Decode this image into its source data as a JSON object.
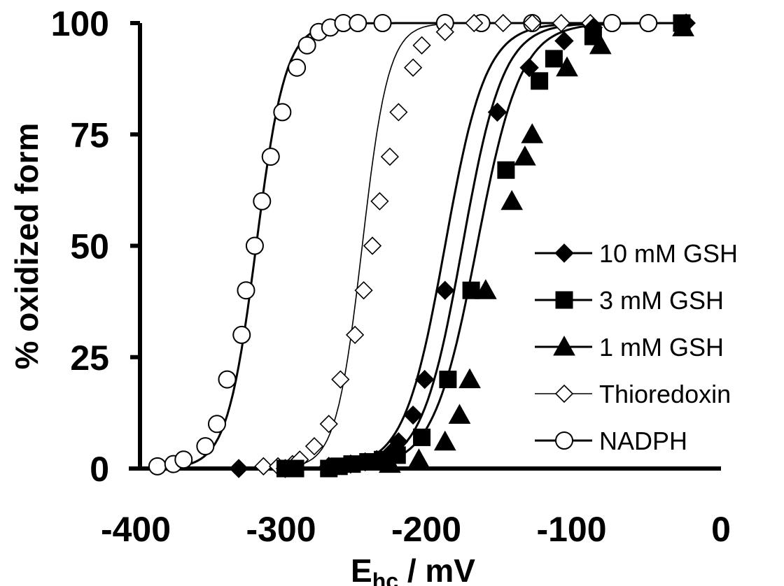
{
  "chart_data": {
    "type": "scatter",
    "xlabel": "E",
    "xlabel_sub": "hc",
    "xlabel_unit": " / mV",
    "ylabel": "% oxidized form",
    "xlim": [
      -400,
      0
    ],
    "ylim": [
      0,
      100
    ],
    "x_ticks": [
      "-400",
      "-300",
      "-200",
      "-100",
      "0"
    ],
    "x_tick_values": [
      -400,
      -300,
      -200,
      -100,
      0
    ],
    "y_ticks": [
      "0",
      "25",
      "50",
      "75",
      "100"
    ],
    "y_tick_values": [
      0,
      25,
      50,
      75,
      100
    ],
    "grid": false,
    "legend_position": "right",
    "series": [
      {
        "name": "10 mM GSH",
        "marker": "diamond-filled",
        "midpoint": -190,
        "slope": 14,
        "color": "#000000",
        "points": [
          [
            -332,
            0
          ],
          [
            -300,
            0
          ],
          [
            -270,
            0.5
          ],
          [
            -255,
            1
          ],
          [
            -245,
            1.5
          ],
          [
            -237,
            2
          ],
          [
            -226,
            4
          ],
          [
            -222,
            6
          ],
          [
            -212,
            12
          ],
          [
            -204,
            20
          ],
          [
            -190,
            40
          ],
          [
            -154,
            80
          ],
          [
            -132,
            90
          ],
          [
            -108,
            96
          ],
          [
            -88,
            99
          ],
          [
            -24,
            100
          ]
        ]
      },
      {
        "name": "3 mM GSH",
        "marker": "square-filled",
        "midpoint": -178,
        "slope": 14,
        "color": "#000000",
        "points": [
          [
            -300,
            0
          ],
          [
            -293,
            0
          ],
          [
            -270,
            0
          ],
          [
            -263,
            0.5
          ],
          [
            -254,
            1
          ],
          [
            -243,
            1.5
          ],
          [
            -233,
            2
          ],
          [
            -223,
            3
          ],
          [
            -206,
            7
          ],
          [
            -188,
            20
          ],
          [
            -172,
            40
          ],
          [
            -148,
            67
          ],
          [
            -125,
            87
          ],
          [
            -115,
            92
          ],
          [
            -88,
            97
          ],
          [
            -27,
            100
          ]
        ]
      },
      {
        "name": "1 mM GSH",
        "marker": "triangle-filled",
        "midpoint": -168,
        "slope": 15,
        "color": "#000000",
        "points": [
          [
            -228,
            1
          ],
          [
            -208,
            2
          ],
          [
            -190,
            6
          ],
          [
            -180,
            12
          ],
          [
            -173,
            20
          ],
          [
            -162,
            40
          ],
          [
            -144,
            60
          ],
          [
            -135,
            70
          ],
          [
            -130,
            75
          ],
          [
            -106,
            90
          ],
          [
            -83,
            95
          ],
          [
            -26,
            99
          ]
        ]
      },
      {
        "name": "Thioredoxin",
        "marker": "diamond-open",
        "midpoint": -247,
        "slope": 9,
        "color": "#000000",
        "points": [
          [
            -315,
            0.5
          ],
          [
            -305,
            0.5
          ],
          [
            -295,
            1
          ],
          [
            -290,
            2
          ],
          [
            -280,
            5
          ],
          [
            -270,
            10
          ],
          [
            -262,
            20
          ],
          [
            -252,
            30
          ],
          [
            -246,
            40
          ],
          [
            -240,
            50
          ],
          [
            -235,
            60
          ],
          [
            -228,
            70
          ],
          [
            -222,
            80
          ],
          [
            -212,
            90
          ],
          [
            -206,
            95
          ],
          [
            -190,
            98
          ],
          [
            -170,
            100
          ],
          [
            -150,
            100
          ],
          [
            -130,
            100
          ],
          [
            -110,
            100
          ],
          [
            -90,
            100
          ]
        ]
      },
      {
        "name": "NADPH",
        "marker": "circle-open",
        "midpoint": -320,
        "slope": 10,
        "color": "#000000",
        "points": [
          [
            -388,
            0.5
          ],
          [
            -377,
            1
          ],
          [
            -370,
            2
          ],
          [
            -355,
            5
          ],
          [
            -347,
            10
          ],
          [
            -340,
            20
          ],
          [
            -330,
            30
          ],
          [
            -327,
            40
          ],
          [
            -321,
            50
          ],
          [
            -316,
            60
          ],
          [
            -310,
            70
          ],
          [
            -302,
            80
          ],
          [
            -292,
            90
          ],
          [
            -285,
            95
          ],
          [
            -277,
            98
          ],
          [
            -269,
            99
          ],
          [
            -260,
            100
          ],
          [
            -250,
            100
          ],
          [
            -233,
            100
          ],
          [
            -190,
            100
          ],
          [
            -165,
            100
          ],
          [
            -130,
            100
          ],
          [
            -75,
            100
          ],
          [
            -50,
            100
          ]
        ]
      }
    ]
  }
}
